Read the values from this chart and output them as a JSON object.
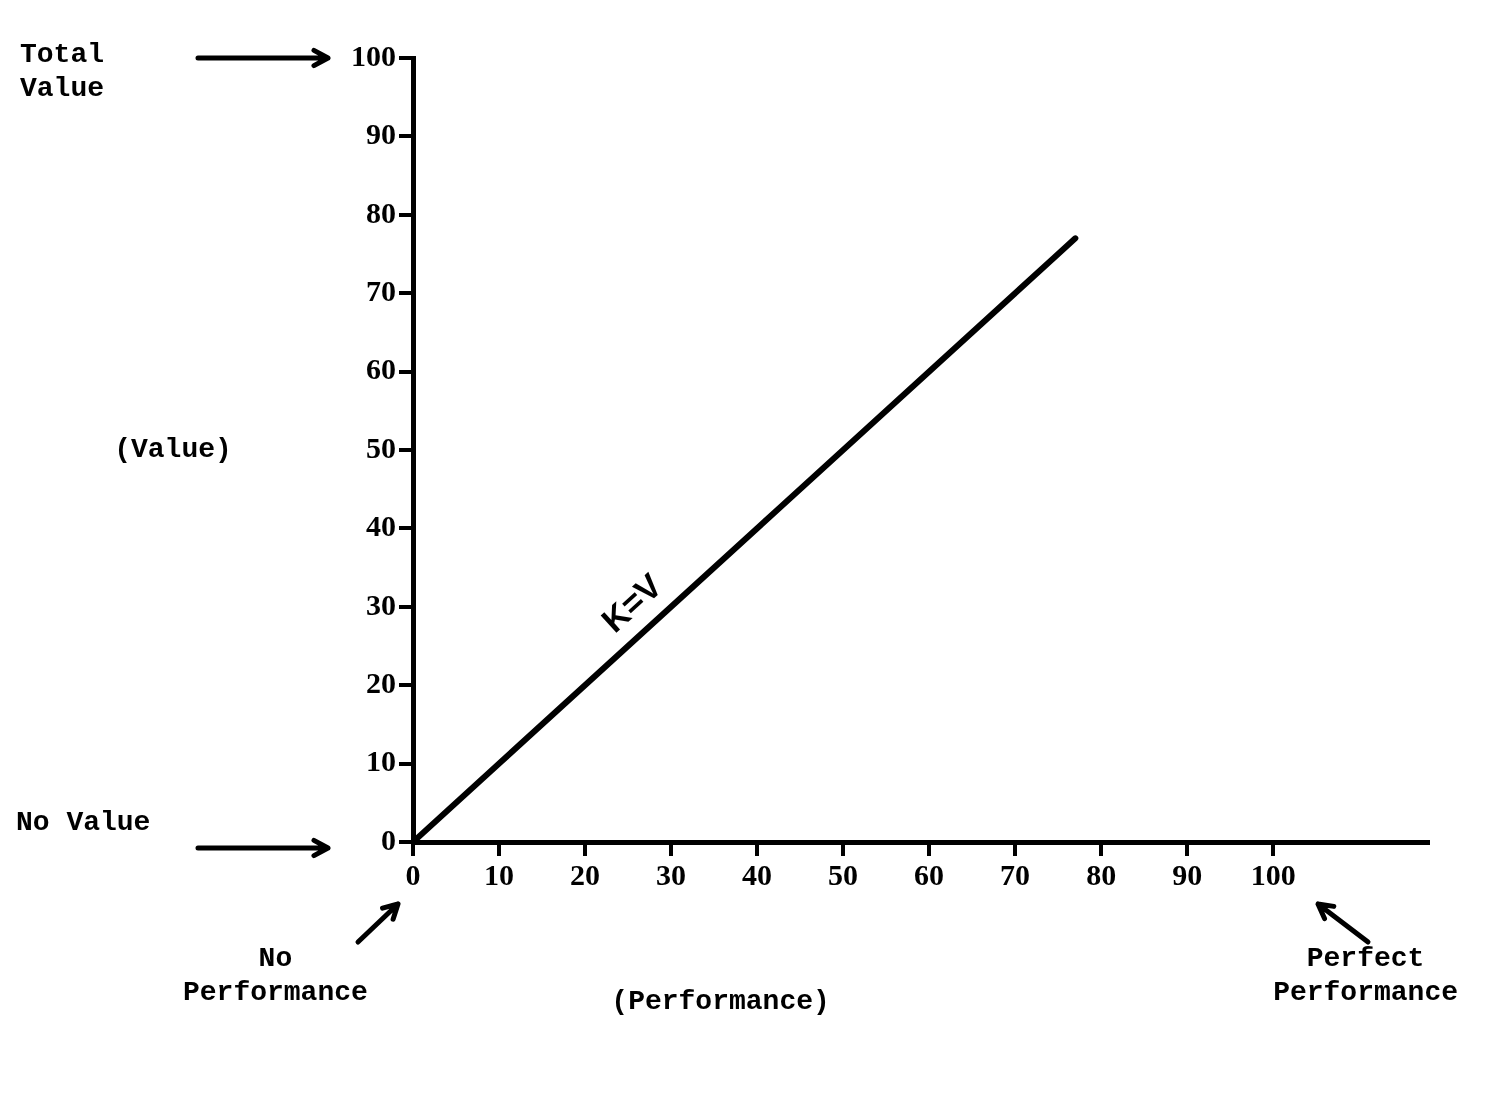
{
  "chart_data": {
    "type": "line",
    "xlabel": "(Performance)",
    "ylabel": "(Value)",
    "x": [
      0,
      77
    ],
    "series": [
      {
        "color": "#000000",
        "values": [
          0,
          77
        ]
      }
    ],
    "xlim": [
      0,
      118
    ],
    "xticks": [
      0,
      10,
      20,
      30,
      40,
      50,
      60,
      70,
      80,
      90,
      100
    ],
    "ylim": [
      0,
      100
    ],
    "yticks": [
      0,
      10,
      20,
      30,
      40,
      50,
      60,
      70,
      80,
      90,
      100
    ],
    "grid": false,
    "legend": false,
    "marker": "none",
    "line_style": "solid",
    "annotations": [
      "Total Value",
      "No Value",
      "No Performance",
      "Perfect Performance",
      "K=V"
    ]
  }
}
